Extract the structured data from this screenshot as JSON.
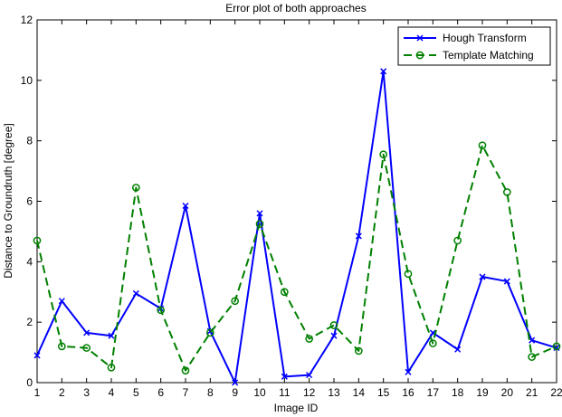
{
  "chart_data": {
    "type": "line",
    "title": "Error plot of both approaches",
    "xlabel": "Image ID",
    "ylabel": "Distance to Groundruth [degree]",
    "x": [
      1,
      2,
      3,
      4,
      5,
      6,
      7,
      8,
      9,
      10,
      11,
      12,
      13,
      14,
      15,
      16,
      17,
      18,
      19,
      20,
      21,
      22
    ],
    "xlim": [
      1,
      22
    ],
    "ylim": [
      0,
      12
    ],
    "yticks": [
      0,
      2,
      4,
      6,
      8,
      10,
      12
    ],
    "grid": false,
    "legend_position": "top-right",
    "series": [
      {
        "name": "Hough Transform",
        "color": "#0000ff",
        "marker": "x",
        "linestyle": "solid",
        "values": [
          0.9,
          2.7,
          1.65,
          1.55,
          2.95,
          2.45,
          5.85,
          1.7,
          0.0,
          5.6,
          0.2,
          0.25,
          1.55,
          4.85,
          10.3,
          0.35,
          1.65,
          1.1,
          3.5,
          3.35,
          1.4,
          1.15
        ]
      },
      {
        "name": "Template Matching",
        "color": "#008000",
        "marker": "o",
        "linestyle": "dashed",
        "values": [
          4.7,
          1.2,
          1.15,
          0.5,
          6.45,
          2.4,
          0.4,
          1.65,
          2.7,
          5.25,
          3.0,
          1.45,
          1.9,
          1.05,
          7.55,
          3.6,
          1.3,
          4.7,
          7.85,
          6.3,
          0.85,
          1.2
        ]
      }
    ]
  }
}
